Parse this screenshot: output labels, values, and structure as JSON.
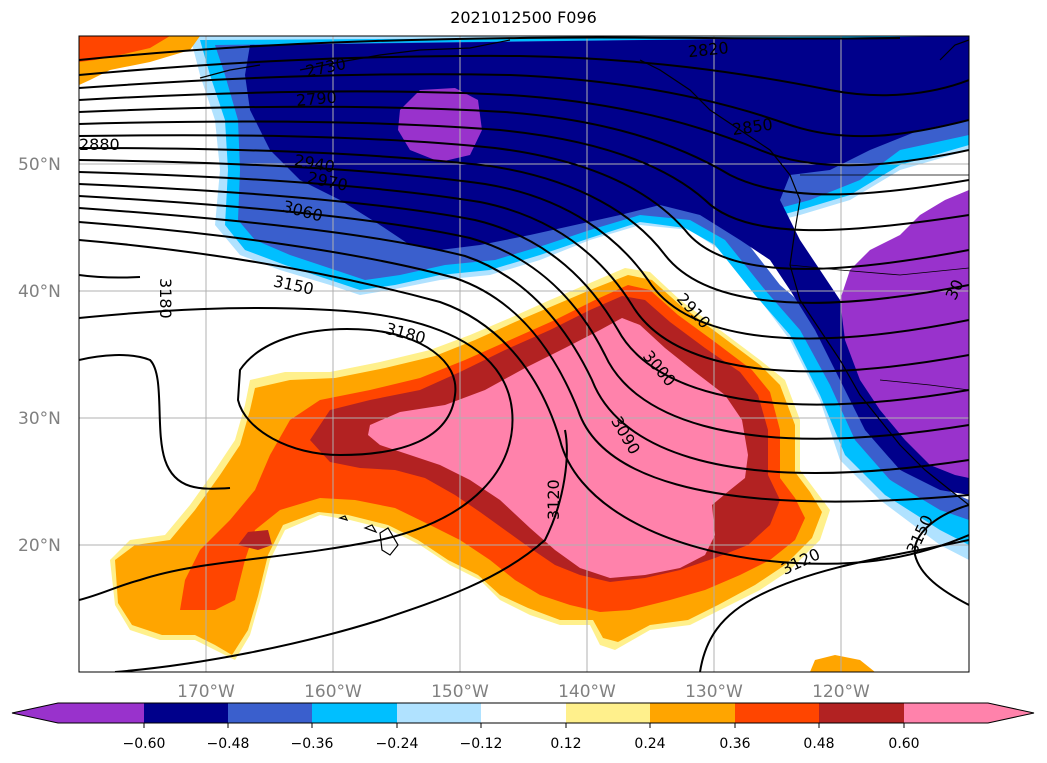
{
  "title": "2021012500 F096",
  "map": {
    "lat_labels": [
      "50°N",
      "40°N",
      "30°N",
      "20°N"
    ],
    "lon_labels": [
      "170°W",
      "160°W",
      "150°W",
      "140°W",
      "130°W",
      "120°W"
    ],
    "contour_labels": [
      "2730",
      "2790",
      "2820",
      "2850",
      "2880",
      "2940",
      "2970",
      "3060",
      "3150",
      "3180",
      "3180",
      "2910",
      "3000",
      "3090",
      "3120",
      "3120",
      "3150",
      "30"
    ]
  },
  "colorbar": {
    "ticks": [
      "−0.60",
      "−0.48",
      "−0.36",
      "−0.24",
      "−0.12",
      "0.12",
      "0.24",
      "0.36",
      "0.48",
      "0.60"
    ],
    "colors": [
      "#9932cc",
      "#00008b",
      "#3a5fcd",
      "#00bfff",
      "#b0e2ff",
      "#ffffff",
      "#fff08c",
      "#ffa500",
      "#ff4500",
      "#b22222",
      "#ff82ab"
    ]
  }
}
